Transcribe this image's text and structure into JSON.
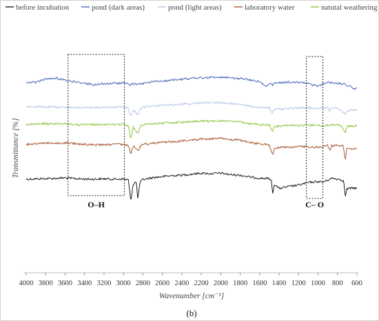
{
  "chart_data": {
    "type": "line",
    "title": "",
    "xlabel": "Wavenumber [cm⁻¹]",
    "ylabel": "Transmittance [%]",
    "xlim": [
      4000,
      600
    ],
    "x_reversed": true,
    "x_ticks": [
      4000,
      3800,
      3600,
      3400,
      3200,
      3000,
      2800,
      2600,
      2400,
      2200,
      2000,
      1800,
      1600,
      1400,
      1200,
      1000,
      800,
      600
    ],
    "y_ticks_shown": false,
    "grid": false,
    "legend_position": "top",
    "series": [
      {
        "name": "before incubation",
        "color": "#1a1a1a",
        "offset": 0,
        "points": [
          [
            4000,
            0.0
          ],
          [
            3900,
            0.01
          ],
          [
            3800,
            0.02
          ],
          [
            3700,
            0.03
          ],
          [
            3600,
            0.05
          ],
          [
            3500,
            0.02
          ],
          [
            3400,
            0.0
          ],
          [
            3300,
            0.0
          ],
          [
            3200,
            0.01
          ],
          [
            3100,
            0.0
          ],
          [
            3000,
            0.0
          ],
          [
            2950,
            -0.03
          ],
          [
            2925,
            -0.88
          ],
          [
            2900,
            -0.2
          ],
          [
            2870,
            -0.1
          ],
          [
            2852,
            -0.82
          ],
          [
            2830,
            -0.12
          ],
          [
            2800,
            -0.02
          ],
          [
            2700,
            0.06
          ],
          [
            2600,
            0.1
          ],
          [
            2500,
            0.14
          ],
          [
            2400,
            0.16
          ],
          [
            2300,
            0.2
          ],
          [
            2200,
            0.24
          ],
          [
            2100,
            0.22
          ],
          [
            2000,
            0.24
          ],
          [
            1900,
            0.18
          ],
          [
            1800,
            0.16
          ],
          [
            1700,
            0.08
          ],
          [
            1600,
            0.04
          ],
          [
            1500,
            0.02
          ],
          [
            1480,
            -0.08
          ],
          [
            1465,
            -0.58
          ],
          [
            1450,
            -0.2
          ],
          [
            1400,
            -0.38
          ],
          [
            1300,
            -0.3
          ],
          [
            1200,
            -0.24
          ],
          [
            1100,
            -0.14
          ],
          [
            1000,
            -0.1
          ],
          [
            950,
            -0.12
          ],
          [
            900,
            -0.04
          ],
          [
            850,
            0.04
          ],
          [
            800,
            0.0
          ],
          [
            760,
            -0.02
          ],
          [
            735,
            -0.1
          ],
          [
            720,
            -0.74
          ],
          [
            705,
            -0.4
          ],
          [
            680,
            -0.38
          ],
          [
            650,
            -0.36
          ],
          [
            620,
            -0.36
          ]
        ]
      },
      {
        "name": "pond (dark areas)",
        "color": "#4668b8",
        "offset": 3.9,
        "points": [
          [
            4000,
            0.0
          ],
          [
            3900,
            0.01
          ],
          [
            3800,
            0.12
          ],
          [
            3700,
            0.17
          ],
          [
            3600,
            0.1
          ],
          [
            3500,
            0.02
          ],
          [
            3400,
            -0.05
          ],
          [
            3300,
            -0.08
          ],
          [
            3200,
            -0.06
          ],
          [
            3100,
            -0.04
          ],
          [
            3000,
            -0.03
          ],
          [
            2950,
            -0.07
          ],
          [
            2925,
            -0.1
          ],
          [
            2900,
            -0.06
          ],
          [
            2852,
            -0.08
          ],
          [
            2800,
            -0.04
          ],
          [
            2700,
            0.02
          ],
          [
            2600,
            0.06
          ],
          [
            2500,
            0.09
          ],
          [
            2400,
            0.12
          ],
          [
            2300,
            0.16
          ],
          [
            2200,
            0.18
          ],
          [
            2100,
            0.2
          ],
          [
            2000,
            0.22
          ],
          [
            1900,
            0.18
          ],
          [
            1800,
            0.16
          ],
          [
            1700,
            0.1
          ],
          [
            1600,
            0.04
          ],
          [
            1560,
            -0.06
          ],
          [
            1540,
            -0.18
          ],
          [
            1500,
            -0.06
          ],
          [
            1465,
            -0.1
          ],
          [
            1450,
            -0.04
          ],
          [
            1400,
            -0.02
          ],
          [
            1300,
            0.02
          ],
          [
            1200,
            0.0
          ],
          [
            1100,
            -0.02
          ],
          [
            1050,
            -0.1
          ],
          [
            1000,
            -0.14
          ],
          [
            950,
            -0.06
          ],
          [
            900,
            0.0
          ],
          [
            850,
            -0.02
          ],
          [
            800,
            -0.04
          ],
          [
            720,
            -0.08
          ],
          [
            680,
            -0.14
          ],
          [
            620,
            -0.26
          ]
        ]
      },
      {
        "name": "pond (light areas)",
        "color": "#b4c4e6",
        "offset": 2.9,
        "points": [
          [
            4000,
            0.0
          ],
          [
            3900,
            0.02
          ],
          [
            3800,
            0.02
          ],
          [
            3700,
            0.0
          ],
          [
            3600,
            0.0
          ],
          [
            3500,
            -0.02
          ],
          [
            3400,
            -0.02
          ],
          [
            3300,
            -0.01
          ],
          [
            3200,
            0.0
          ],
          [
            3100,
            0.0
          ],
          [
            3000,
            0.0
          ],
          [
            2950,
            -0.04
          ],
          [
            2925,
            -0.4
          ],
          [
            2900,
            -0.1
          ],
          [
            2852,
            -0.3
          ],
          [
            2820,
            -0.05
          ],
          [
            2800,
            0.0
          ],
          [
            2700,
            0.04
          ],
          [
            2600,
            0.08
          ],
          [
            2500,
            0.1
          ],
          [
            2400,
            0.12
          ],
          [
            2300,
            0.14
          ],
          [
            2200,
            0.16
          ],
          [
            2100,
            0.18
          ],
          [
            2000,
            0.18
          ],
          [
            1900,
            0.14
          ],
          [
            1800,
            0.12
          ],
          [
            1700,
            0.04
          ],
          [
            1600,
            0.0
          ],
          [
            1500,
            -0.02
          ],
          [
            1470,
            -0.24
          ],
          [
            1450,
            -0.1
          ],
          [
            1400,
            -0.08
          ],
          [
            1300,
            -0.06
          ],
          [
            1200,
            -0.04
          ],
          [
            1100,
            -0.02
          ],
          [
            1000,
            -0.04
          ],
          [
            950,
            -0.06
          ],
          [
            900,
            -0.02
          ],
          [
            880,
            -0.16
          ],
          [
            860,
            -0.04
          ],
          [
            800,
            -0.02
          ],
          [
            720,
            -0.26
          ],
          [
            680,
            -0.12
          ],
          [
            620,
            -0.12
          ]
        ]
      },
      {
        "name": "laboratory water",
        "color": "#a85830",
        "offset": 1.4,
        "points": [
          [
            4000,
            0.0
          ],
          [
            3900,
            0.02
          ],
          [
            3800,
            0.06
          ],
          [
            3700,
            0.04
          ],
          [
            3600,
            0.06
          ],
          [
            3500,
            0.03
          ],
          [
            3400,
            0.0
          ],
          [
            3300,
            -0.02
          ],
          [
            3200,
            -0.02
          ],
          [
            3100,
            -0.01
          ],
          [
            3000,
            0.0
          ],
          [
            2950,
            -0.03
          ],
          [
            2925,
            -0.4
          ],
          [
            2900,
            -0.06
          ],
          [
            2852,
            -0.28
          ],
          [
            2820,
            -0.04
          ],
          [
            2800,
            0.0
          ],
          [
            2700,
            0.04
          ],
          [
            2600,
            0.08
          ],
          [
            2500,
            0.1
          ],
          [
            2400,
            0.14
          ],
          [
            2300,
            0.18
          ],
          [
            2200,
            0.22
          ],
          [
            2100,
            0.22
          ],
          [
            2000,
            0.24
          ],
          [
            1900,
            0.2
          ],
          [
            1800,
            0.16
          ],
          [
            1700,
            0.08
          ],
          [
            1600,
            0.02
          ],
          [
            1500,
            -0.02
          ],
          [
            1465,
            -0.44
          ],
          [
            1450,
            -0.16
          ],
          [
            1400,
            -0.12
          ],
          [
            1300,
            -0.12
          ],
          [
            1200,
            -0.1
          ],
          [
            1100,
            -0.08
          ],
          [
            1000,
            -0.12
          ],
          [
            950,
            -0.1
          ],
          [
            900,
            -0.04
          ],
          [
            875,
            -0.28
          ],
          [
            860,
            -0.06
          ],
          [
            800,
            -0.04
          ],
          [
            740,
            -0.06
          ],
          [
            720,
            -0.66
          ],
          [
            705,
            -0.16
          ],
          [
            680,
            -0.2
          ],
          [
            620,
            -0.18
          ]
        ]
      },
      {
        "name": "natutal weathering",
        "color": "#8cc43c",
        "offset": 2.2,
        "points": [
          [
            4000,
            0.0
          ],
          [
            3900,
            0.02
          ],
          [
            3800,
            0.04
          ],
          [
            3700,
            0.02
          ],
          [
            3600,
            0.03
          ],
          [
            3500,
            0.0
          ],
          [
            3400,
            -0.01
          ],
          [
            3300,
            0.0
          ],
          [
            3200,
            0.0
          ],
          [
            3100,
            0.0
          ],
          [
            3000,
            0.0
          ],
          [
            2950,
            -0.04
          ],
          [
            2925,
            -0.56
          ],
          [
            2900,
            -0.1
          ],
          [
            2852,
            -0.38
          ],
          [
            2820,
            -0.04
          ],
          [
            2800,
            0.0
          ],
          [
            2700,
            0.04
          ],
          [
            2600,
            0.06
          ],
          [
            2500,
            0.08
          ],
          [
            2400,
            0.1
          ],
          [
            2300,
            0.12
          ],
          [
            2200,
            0.14
          ],
          [
            2100,
            0.14
          ],
          [
            2000,
            0.16
          ],
          [
            1900,
            0.12
          ],
          [
            1800,
            0.1
          ],
          [
            1700,
            0.04
          ],
          [
            1600,
            0.0
          ],
          [
            1500,
            -0.02
          ],
          [
            1470,
            -0.3
          ],
          [
            1450,
            -0.1
          ],
          [
            1400,
            -0.06
          ],
          [
            1300,
            -0.04
          ],
          [
            1200,
            -0.04
          ],
          [
            1100,
            -0.02
          ],
          [
            1000,
            -0.04
          ],
          [
            950,
            -0.04
          ],
          [
            900,
            -0.02
          ],
          [
            800,
            -0.02
          ],
          [
            760,
            -0.04
          ],
          [
            720,
            -0.34
          ],
          [
            700,
            -0.06
          ],
          [
            680,
            -0.06
          ],
          [
            620,
            -0.06
          ]
        ]
      }
    ],
    "annotations": [
      {
        "label": "O–H",
        "x_range": [
          3570,
          2990
        ]
      },
      {
        "label": "C– O",
        "x_range": [
          1120,
          950
        ]
      }
    ]
  },
  "caption": "(b)"
}
